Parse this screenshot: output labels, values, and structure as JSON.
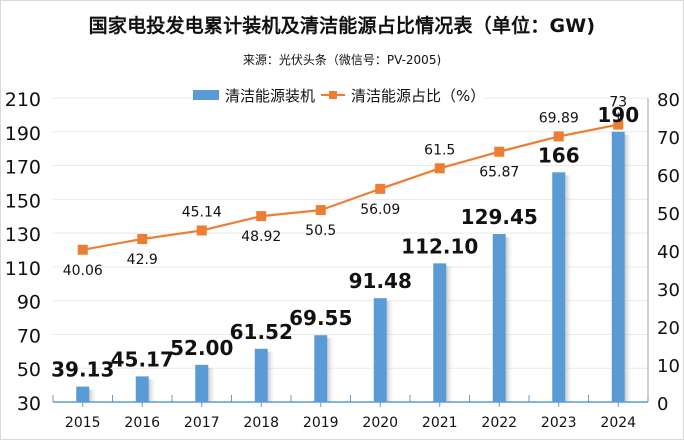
{
  "header": {
    "title": "国家电投发电累计装机及清洁能源占比情况表（单位：GW)",
    "subtitle": "来源：光伏头条（微信号：PV-2005)"
  },
  "colors": {
    "bar": "#5b9bd5",
    "line": "#ed7d31",
    "grid": "#e9e9e9",
    "axis": "#5b9bd5",
    "text": "#111111"
  },
  "chart_data": {
    "type": "bar+line",
    "title": "国家电投发电累计装机及清洁能源占比情况表（单位：GW)",
    "subtitle": "来源：光伏头条（微信号：PV-2005)",
    "categories": [
      "2015",
      "2016",
      "2017",
      "2018",
      "2019",
      "2020",
      "2021",
      "2022",
      "2023",
      "2024"
    ],
    "series": [
      {
        "name": "清洁能源装机",
        "type": "bar",
        "axis": "left",
        "values": [
          39.13,
          45.17,
          52.0,
          61.52,
          69.55,
          91.48,
          112.1,
          129.45,
          166,
          190
        ],
        "labels": [
          "39.13",
          "45.17",
          "52.00",
          "61.52",
          "69.55",
          "91.48",
          "112.10",
          "129.45",
          "166",
          "190"
        ]
      },
      {
        "name": "清洁能源占比（%）",
        "type": "line",
        "axis": "right",
        "values": [
          40.06,
          42.9,
          45.14,
          48.92,
          50.5,
          56.09,
          61.5,
          65.87,
          69.89,
          73
        ],
        "labels": [
          "40.06",
          "42.9",
          "45.14",
          "48.92",
          "50.5",
          "56.09",
          "61.5",
          "65.87",
          "69.89",
          "73"
        ],
        "label_position": [
          "below",
          "below",
          "above",
          "below",
          "below",
          "below",
          "above",
          "below",
          "above",
          "above"
        ]
      }
    ],
    "y_left": {
      "min": 30,
      "max": 210,
      "ticks": [
        30,
        50,
        70,
        90,
        110,
        130,
        150,
        170,
        190,
        210
      ]
    },
    "y_right": {
      "min": 0,
      "max": 80,
      "ticks": [
        0,
        10,
        20,
        30,
        40,
        50,
        60,
        70,
        80
      ]
    },
    "xlabel": "",
    "ylabel": "",
    "grid": true,
    "legend": "top-center"
  }
}
